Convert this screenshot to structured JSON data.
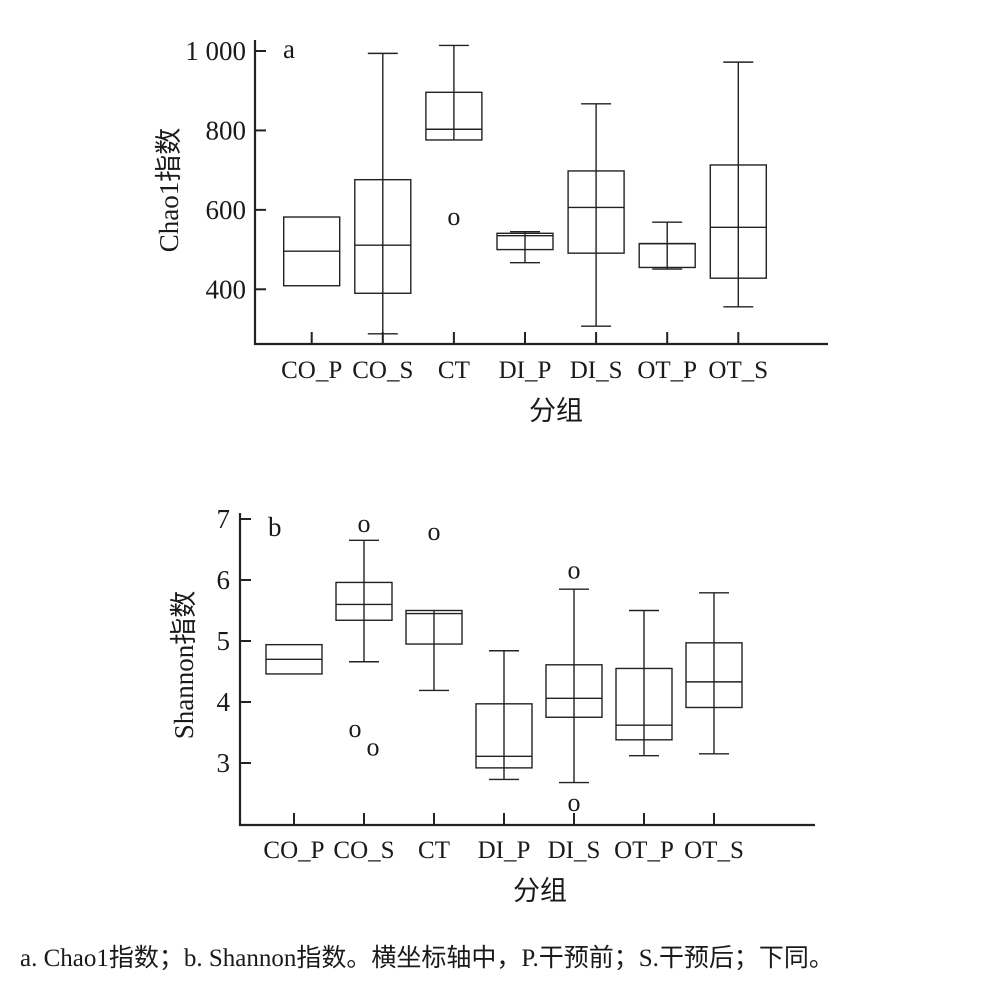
{
  "chart_data": [
    {
      "type": "boxplot",
      "panel_label": "a",
      "xlabel": "分组",
      "ylabel": "Chao1指数",
      "ylim": [
        262,
        1030
      ],
      "yticks": [
        400,
        600,
        800,
        1000
      ],
      "ytick_labels": [
        "400",
        "600",
        "800",
        "1 000"
      ],
      "categories": [
        "CO_P",
        "CO_S",
        "CT",
        "DI_P",
        "DI_S",
        "OT_P",
        "OT_S"
      ],
      "boxes": [
        {
          "min": null,
          "q1": 409,
          "median": 496,
          "q3": 582,
          "max": null,
          "outliers": []
        },
        {
          "min": 288,
          "q1": 390,
          "median": 511,
          "q3": 676,
          "max": 994,
          "outliers": []
        },
        {
          "min": null,
          "q1": 776,
          "median": 803,
          "q3": 896,
          "max": 1014,
          "outliers": [
            579
          ]
        },
        {
          "min": 467,
          "q1": 500,
          "median": 535,
          "q3": 541,
          "max": 545,
          "outliers": []
        },
        {
          "min": 307,
          "q1": 491,
          "median": 606,
          "q3": 698,
          "max": 867,
          "outliers": []
        },
        {
          "min": 451,
          "q1": 455,
          "median": 515,
          "q3": 515,
          "max": 569,
          "outliers": []
        },
        {
          "min": 356,
          "q1": 428,
          "median": 556,
          "q3": 713,
          "max": 972,
          "outliers": []
        }
      ]
    },
    {
      "type": "boxplot",
      "panel_label": "b",
      "xlabel": "分组",
      "ylabel": "Shannon指数",
      "ylim": [
        1.98,
        7.1
      ],
      "yticks": [
        3,
        4,
        5,
        6,
        7
      ],
      "ytick_labels": [
        "3",
        "4",
        "5",
        "6",
        "7"
      ],
      "categories": [
        "CO_P",
        "CO_S",
        "CT",
        "DI_P",
        "DI_S",
        "OT_P",
        "OT_S"
      ],
      "boxes": [
        {
          "min": null,
          "q1": 4.46,
          "median": 4.7,
          "q3": 4.94,
          "max": null,
          "outliers": []
        },
        {
          "min": 4.66,
          "q1": 5.34,
          "median": 5.6,
          "q3": 5.96,
          "max": 6.65,
          "outliers": [
            6.9,
            3.54,
            3.24
          ]
        },
        {
          "min": 4.19,
          "q1": 4.95,
          "median": 5.45,
          "q3": 5.5,
          "max": null,
          "outliers": [
            6.77
          ]
        },
        {
          "min": 2.73,
          "q1": 2.92,
          "median": 3.11,
          "q3": 3.97,
          "max": 4.84,
          "outliers": []
        },
        {
          "min": 2.68,
          "q1": 3.75,
          "median": 4.06,
          "q3": 4.61,
          "max": 5.85,
          "outliers": [
            6.14,
            2.33
          ]
        },
        {
          "min": 3.12,
          "q1": 3.38,
          "median": 3.62,
          "q3": 4.55,
          "max": 5.5,
          "outliers": []
        },
        {
          "min": 3.15,
          "q1": 3.91,
          "median": 4.33,
          "q3": 4.97,
          "max": 5.79,
          "outliers": []
        }
      ]
    }
  ],
  "outlier_marker": "o",
  "caption": "a. Chao1指数；b. Shannon指数。横坐标轴中，P.干预前；S.干预后；下同。"
}
